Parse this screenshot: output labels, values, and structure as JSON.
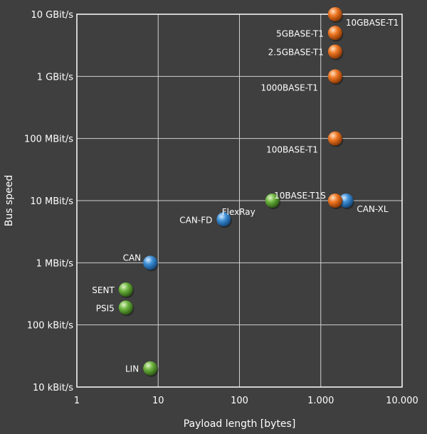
{
  "chart_data": {
    "type": "scatter",
    "title": "",
    "xlabel": "Payload length [bytes]",
    "ylabel": "Bus speed",
    "x_scale": "log",
    "y_scale": "log",
    "xlim": [
      1,
      10000
    ],
    "ylim": [
      10000,
      10000000000
    ],
    "grid": true,
    "x_ticks": [
      {
        "value": 1,
        "label": "1"
      },
      {
        "value": 10,
        "label": "10"
      },
      {
        "value": 100,
        "label": "100"
      },
      {
        "value": 1000,
        "label": "1.000"
      },
      {
        "value": 10000,
        "label": "10.000"
      }
    ],
    "y_ticks": [
      {
        "value": 10000,
        "label": "10 kBit/s"
      },
      {
        "value": 100000,
        "label": "100 kBit/s"
      },
      {
        "value": 1000000,
        "label": "1 MBit/s"
      },
      {
        "value": 10000000,
        "label": "10 MBit/s"
      },
      {
        "value": 100000000,
        "label": "100 MBit/s"
      },
      {
        "value": 1000000000,
        "label": "1 GBit/s"
      },
      {
        "value": 10000000000,
        "label": "10 GBit/s"
      }
    ],
    "colors": {
      "green": "#6cb33f",
      "blue": "#3d8fd6",
      "orange": "#ee7622"
    },
    "points": [
      {
        "label": "LIN",
        "x": 8,
        "y": 20000,
        "color": "green",
        "label_pos": "left"
      },
      {
        "label": "PSI5",
        "x": 4,
        "y": 190000,
        "color": "green",
        "label_pos": "left"
      },
      {
        "label": "SENT",
        "x": 4,
        "y": 370000,
        "color": "green",
        "label_pos": "left"
      },
      {
        "label": "CAN",
        "x": 8,
        "y": 1000000,
        "color": "blue",
        "label_pos": "upper-left"
      },
      {
        "label": "CAN-FD",
        "x": 64,
        "y": 5000000,
        "color": "blue",
        "label_pos": "left"
      },
      {
        "label": "FlexRay",
        "x": 254,
        "y": 10000000,
        "color": "green",
        "label_pos": "below-left"
      },
      {
        "label": "CAN-XL",
        "x": 2048,
        "y": 10000000,
        "color": "blue",
        "label_pos": "below-right"
      },
      {
        "label": "10BASE-T1S",
        "x": 1500,
        "y": 10000000,
        "color": "orange",
        "label_pos": "upper-left"
      },
      {
        "label": "100BASE-T1",
        "x": 1500,
        "y": 100000000,
        "color": "orange",
        "label_pos": "below-left"
      },
      {
        "label": "1000BASE-T1",
        "x": 1500,
        "y": 1000000000,
        "color": "orange",
        "label_pos": "below-left"
      },
      {
        "label": "2.5GBASE-T1",
        "x": 1500,
        "y": 2500000000,
        "color": "orange",
        "label_pos": "left"
      },
      {
        "label": "5GBASE-T1",
        "x": 1500,
        "y": 5000000000,
        "color": "orange",
        "label_pos": "left"
      },
      {
        "label": "10GBASE-T1",
        "x": 1500,
        "y": 10000000000,
        "color": "orange",
        "label_pos": "below-right"
      }
    ]
  }
}
